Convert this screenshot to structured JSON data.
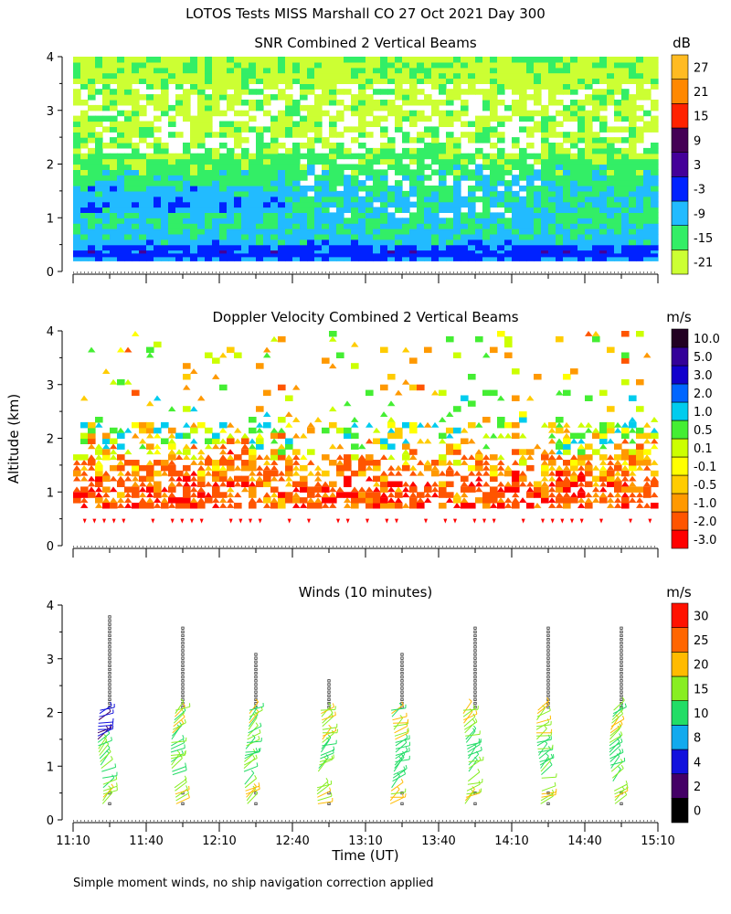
{
  "figure_title": "LOTOS Tests MISS Marshall CO  27 Oct 2021 Day 300",
  "footnote": "Simple moment winds, no ship navigation correction applied",
  "shared_x": {
    "label": "Time (UT)",
    "ticks": [
      "11:10",
      "11:40",
      "12:10",
      "12:40",
      "13:10",
      "13:40",
      "14:10",
      "14:40",
      "15:10"
    ],
    "range_min": [
      670,
      910
    ]
  },
  "shared_y": {
    "label": "Altitude (km)",
    "ticks": [
      "0",
      "1",
      "2",
      "3",
      "4"
    ],
    "range": [
      0,
      4
    ]
  },
  "colors": {
    "snr": [
      "#ccff33",
      "#33ee66",
      "#22bbff",
      "#0022ff",
      "#440099",
      "#440055",
      "#ff2200",
      "#ff8800",
      "#ffbb22"
    ],
    "doppler": [
      "#ff0000",
      "#ff5500",
      "#ff9900",
      "#ffcc00",
      "#ffff00",
      "#ccff00",
      "#44ee33",
      "#00ccee",
      "#0066ff",
      "#1100cc",
      "#330099",
      "#220022"
    ],
    "winds": [
      "#000000",
      "#440066",
      "#1111dd",
      "#11aaee",
      "#22dd66",
      "#88ee22",
      "#ffbb00",
      "#ff6600",
      "#ff1100"
    ]
  },
  "chart_data": [
    {
      "type": "heatmap",
      "title": "SNR Combined 2 Vertical Beams",
      "xlabel": "",
      "ylabel": "",
      "xlim": [
        670,
        910
      ],
      "ylim": [
        0,
        4
      ],
      "colorbar": {
        "unit": "dB",
        "labels": [
          "-21",
          "-15",
          "-9",
          "-3",
          "3",
          "9",
          "15",
          "21",
          "27"
        ]
      },
      "mean_profile_db": [
        {
          "alt": 0.2,
          "db": -6
        },
        {
          "alt": 0.35,
          "db": -2
        },
        {
          "alt": 0.5,
          "db": -9
        },
        {
          "alt": 0.8,
          "db": -12
        },
        {
          "alt": 1.2,
          "db": -11
        },
        {
          "alt": 1.6,
          "db": -13
        },
        {
          "alt": 2.0,
          "db": -16
        },
        {
          "alt": 2.5,
          "db": -19
        },
        {
          "alt": 3.0,
          "db": -20
        },
        {
          "alt": 3.5,
          "db": -20
        },
        {
          "alt": 3.9,
          "db": -19
        }
      ]
    },
    {
      "type": "heatmap",
      "title": "Doppler Velocity Combined 2 Vertical Beams",
      "xlabel": "",
      "ylabel": "Altitude (km)",
      "xlim": [
        670,
        910
      ],
      "ylim": [
        0,
        4
      ],
      "colorbar": {
        "unit": "m/s",
        "labels": [
          "-3.0",
          "-2.0",
          "-1.0",
          "-0.5",
          "-0.1",
          "0.1",
          "0.5",
          "1.0",
          "2.0",
          "3.0",
          "5.0",
          "10.0"
        ]
      },
      "mean_profile_ms": [
        {
          "alt": 0.7,
          "ms": -1.5
        },
        {
          "alt": 1.0,
          "ms": -1.5
        },
        {
          "alt": 1.4,
          "ms": -1.0
        },
        {
          "alt": 1.8,
          "ms": -0.5
        },
        {
          "alt": 2.2,
          "ms": 0.3
        },
        {
          "alt": 3.0,
          "ms": -0.2
        },
        {
          "alt": 3.7,
          "ms": -0.2
        }
      ]
    },
    {
      "type": "scatter",
      "title": "Winds (10 minutes)",
      "xlabel": "Time (UT)",
      "ylabel": "",
      "xlim": [
        670,
        910
      ],
      "ylim": [
        0,
        4
      ],
      "colorbar": {
        "unit": "m/s",
        "labels": [
          "0",
          "2",
          "4",
          "8",
          "10",
          "15",
          "20",
          "25",
          "30"
        ]
      },
      "profile_times": [
        "11:25",
        "11:55",
        "12:25",
        "12:55",
        "13:25",
        "13:55",
        "14:25",
        "14:55"
      ],
      "profile_minutes": [
        685,
        715,
        745,
        775,
        805,
        835,
        865,
        895
      ],
      "profile_top_km": [
        3.8,
        3.6,
        3.1,
        2.65,
        3.1,
        3.6,
        3.6,
        3.6
      ]
    }
  ]
}
